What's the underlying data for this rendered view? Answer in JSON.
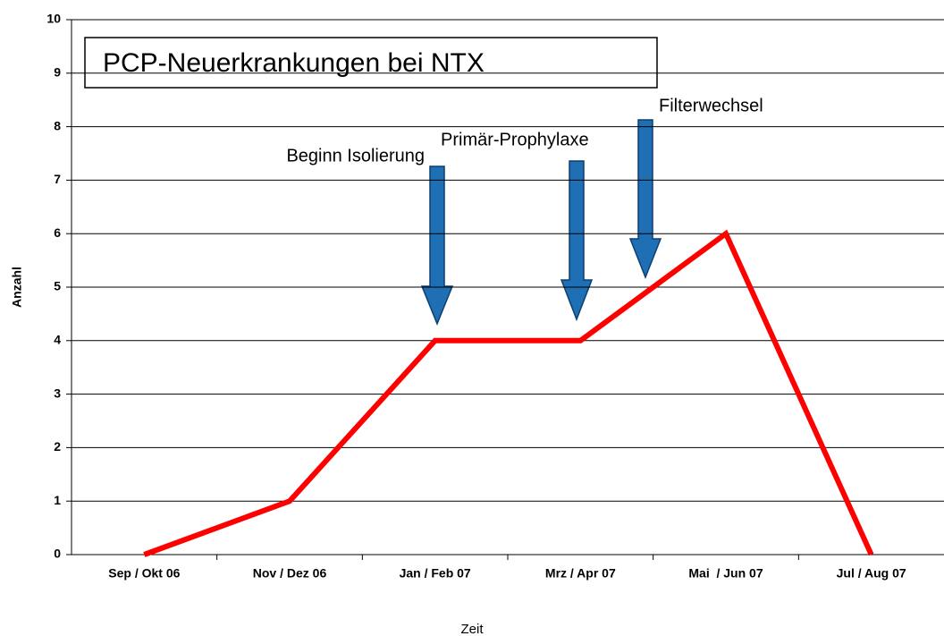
{
  "chart_data": {
    "type": "line",
    "title": "PCP-Neuerkrankungen bei NTX",
    "x_label": "Zeit",
    "y_label": "Anzahl",
    "categories": [
      "Sep / Okt 06",
      "Nov / Dez 06",
      "Jan / Feb 07",
      "Mrz / Apr 07",
      "Mai  / Jun 07",
      "Jul / Aug 07"
    ],
    "series": [
      {
        "color": "#ff0000",
        "values": [
          0,
          1,
          4,
          4,
          6,
          0
        ]
      }
    ],
    "ylim": [
      0,
      10
    ],
    "yticks": [
      0,
      1,
      2,
      3,
      4,
      5,
      6,
      7,
      8,
      9,
      10
    ],
    "grid": true,
    "annotations": [
      "Beginn Isolierung",
      "Primär-Prophylaxe",
      "Filterwechsel"
    ]
  }
}
